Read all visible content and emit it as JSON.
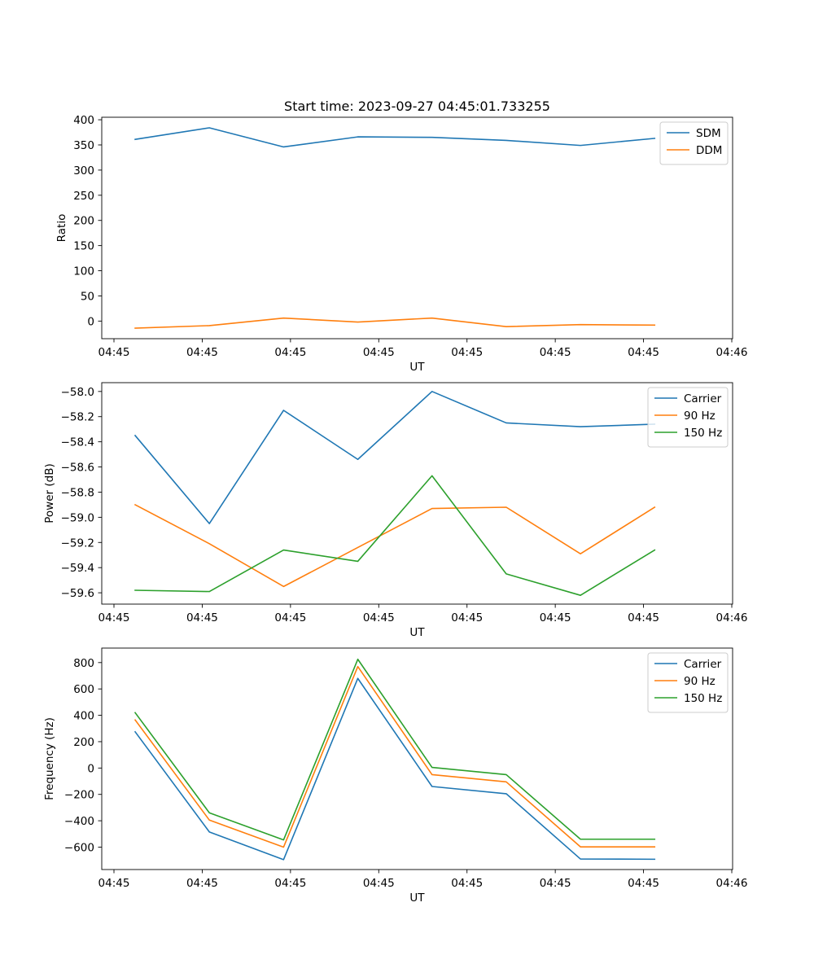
{
  "chart_data": [
    {
      "type": "line",
      "title": "Start time: 2023-09-27 04:45:01.733255",
      "xlabel": "UT",
      "ylabel": "Ratio",
      "x": [
        1,
        2,
        3,
        4,
        5,
        6,
        7,
        8
      ],
      "xlim": [
        0.55,
        9.05
      ],
      "ylim": [
        -35,
        405
      ],
      "yticks": [
        0,
        50,
        100,
        150,
        200,
        250,
        300,
        350,
        400
      ],
      "xtick_labels": [
        "04:45",
        "04:45",
        "04:45",
        "04:45",
        "04:45",
        "04:45",
        "04:45",
        "04:46"
      ],
      "legend_position": "top-right",
      "series": [
        {
          "name": "SDM",
          "color": "#1f77b4",
          "values": [
            361,
            384,
            346,
            366,
            365,
            359,
            349,
            363
          ]
        },
        {
          "name": "DDM",
          "color": "#ff7f0e",
          "values": [
            -14,
            -9,
            6,
            -2,
            6,
            -11,
            -7,
            -8
          ]
        }
      ]
    },
    {
      "type": "line",
      "title": "",
      "xlabel": "UT",
      "ylabel": "Power (dB)",
      "x": [
        1,
        2,
        3,
        4,
        5,
        6,
        7,
        8
      ],
      "xlim": [
        0.55,
        9.05
      ],
      "ylim": [
        -59.69,
        -57.93
      ],
      "yticks": [
        -59.6,
        -59.4,
        -59.2,
        -59.0,
        -58.8,
        -58.6,
        -58.4,
        -58.2,
        -58.0
      ],
      "ytick_labels": [
        "−59.6",
        "−59.4",
        "−59.2",
        "−59.0",
        "−58.8",
        "−58.6",
        "−58.4",
        "−58.2",
        "−58.0"
      ],
      "xtick_labels": [
        "04:45",
        "04:45",
        "04:45",
        "04:45",
        "04:45",
        "04:45",
        "04:45",
        "04:46"
      ],
      "legend_position": "top-right",
      "series": [
        {
          "name": "Carrier",
          "color": "#1f77b4",
          "values": [
            -58.35,
            -59.05,
            -58.15,
            -58.54,
            -58.0,
            -58.25,
            -58.28,
            -58.26
          ]
        },
        {
          "name": "90 Hz",
          "color": "#ff7f0e",
          "values": [
            -58.9,
            -59.21,
            -59.55,
            -59.24,
            -58.93,
            -58.92,
            -59.29,
            -58.92
          ]
        },
        {
          "name": "150 Hz",
          "color": "#2ca02c",
          "values": [
            -59.58,
            -59.59,
            -59.26,
            -59.35,
            -58.67,
            -59.45,
            -59.62,
            -59.26
          ]
        }
      ]
    },
    {
      "type": "line",
      "title": "",
      "xlabel": "UT",
      "ylabel": "Frequency (Hz)",
      "x": [
        1,
        2,
        3,
        4,
        5,
        6,
        7,
        8
      ],
      "xlim": [
        0.55,
        9.05
      ],
      "ylim": [
        -770,
        910
      ],
      "yticks": [
        -600,
        -400,
        -200,
        0,
        200,
        400,
        600,
        800
      ],
      "ytick_labels": [
        "−600",
        "−400",
        "−200",
        "0",
        "200",
        "400",
        "600",
        "800"
      ],
      "xtick_labels": [
        "04:45",
        "04:45",
        "04:45",
        "04:45",
        "04:45",
        "04:45",
        "04:45",
        "04:46"
      ],
      "legend_position": "top-right",
      "series": [
        {
          "name": "Carrier",
          "color": "#1f77b4",
          "values": [
            275,
            -485,
            -695,
            680,
            -140,
            -195,
            -690,
            -692
          ]
        },
        {
          "name": "90 Hz",
          "color": "#ff7f0e",
          "values": [
            365,
            -395,
            -600,
            770,
            -50,
            -105,
            -598,
            -598
          ]
        },
        {
          "name": "150 Hz",
          "color": "#2ca02c",
          "values": [
            420,
            -340,
            -545,
            825,
            5,
            -50,
            -540,
            -540
          ]
        }
      ]
    }
  ]
}
